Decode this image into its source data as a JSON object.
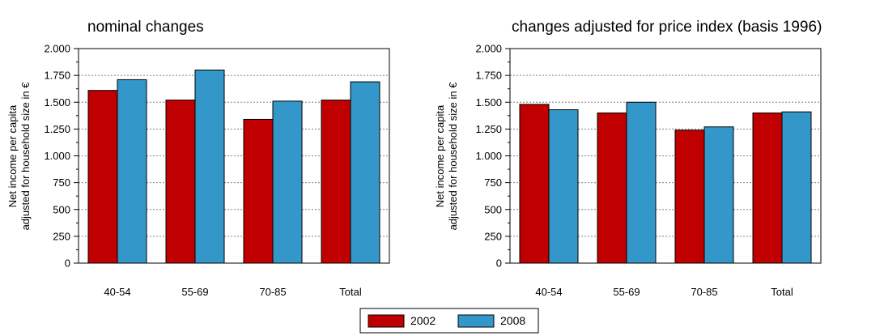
{
  "chart_data": [
    {
      "type": "bar",
      "title": "nominal changes",
      "ylabel_lines": [
        "Net income per capita",
        "adjusted for household size in €"
      ],
      "categories": [
        "40-54",
        "55-69",
        "70-85",
        "Total"
      ],
      "series": [
        {
          "name": "2002",
          "values": [
            1610,
            1520,
            1340,
            1520
          ]
        },
        {
          "name": "2008",
          "values": [
            1710,
            1800,
            1510,
            1690
          ]
        }
      ],
      "ylim": [
        0,
        2000
      ],
      "yticks": [
        0,
        250,
        500,
        750,
        1000,
        1250,
        1500,
        1750,
        2000
      ],
      "ytick_labels": [
        "0",
        "250",
        "500",
        "750",
        "1.000",
        "1.250",
        "1.500",
        "1.750",
        "2.000"
      ],
      "grid": true
    },
    {
      "type": "bar",
      "title": "changes adjusted for price index (basis 1996)",
      "ylabel_lines": [
        "Net income per capita",
        "adjusted for household size in €"
      ],
      "categories": [
        "40-54",
        "55-69",
        "70-85",
        "Total"
      ],
      "series": [
        {
          "name": "2002",
          "values": [
            1480,
            1400,
            1240,
            1400
          ]
        },
        {
          "name": "2008",
          "values": [
            1430,
            1500,
            1270,
            1410
          ]
        }
      ],
      "ylim": [
        0,
        2000
      ],
      "yticks": [
        0,
        250,
        500,
        750,
        1000,
        1250,
        1500,
        1750,
        2000
      ],
      "ytick_labels": [
        "0",
        "250",
        "500",
        "750",
        "1.000",
        "1.250",
        "1.500",
        "1.750",
        "2.000"
      ],
      "grid": true
    }
  ],
  "legend": {
    "placement": "bottom-center",
    "items": [
      {
        "label": "2002",
        "color": "#c00000"
      },
      {
        "label": "2008",
        "color": "#3497c9"
      }
    ]
  },
  "colors": {
    "series_2002": "#c00000",
    "series_2008": "#3497c9"
  }
}
